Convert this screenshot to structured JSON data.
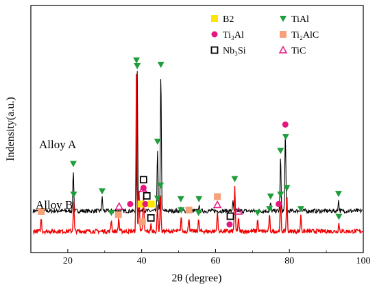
{
  "chart_data": {
    "type": "line",
    "title": "",
    "xlabel": "2θ (degree)",
    "ylabel": "Indensity(a.u.)",
    "xlim": [
      10,
      100
    ],
    "xticks": [
      20,
      40,
      60,
      80,
      100
    ],
    "grid": false,
    "legend_position": "top-center",
    "legend": [
      {
        "key": "B2",
        "label": "B2",
        "marker": "square",
        "color": "#ffe600"
      },
      {
        "key": "TiAl",
        "label": "TiAl",
        "marker": "triangle-down",
        "color": "#1e9e3a"
      },
      {
        "key": "Ti3Al",
        "label": "Ti₃Al",
        "marker": "circle",
        "color": "#e4177f"
      },
      {
        "key": "Ti2AlC",
        "label": "Ti₂AlC",
        "marker": "square",
        "color": "#f5a27a"
      },
      {
        "key": "Nb3Si",
        "label": "Nb₃Si",
        "marker": "open-square",
        "color": "#000000"
      },
      {
        "key": "TiC",
        "label": "TiC",
        "marker": "open-triangle",
        "color": "#e4177f"
      }
    ],
    "series": [
      {
        "name": "Alloy A",
        "color": "#000000",
        "baseline": 0.78,
        "peaks": [
          {
            "x": 21.5,
            "h": 1.55
          },
          {
            "x": 29.3,
            "h": 0.5
          },
          {
            "x": 38.8,
            "h": 5.3
          },
          {
            "x": 40.5,
            "h": 0.25
          },
          {
            "x": 44.3,
            "h": 2.4
          },
          {
            "x": 45.2,
            "h": 5.35
          },
          {
            "x": 50.6,
            "h": 0.2
          },
          {
            "x": 55.5,
            "h": 0.2
          },
          {
            "x": 64.7,
            "h": 0.35
          },
          {
            "x": 74.9,
            "h": 0.3
          },
          {
            "x": 77.6,
            "h": 2.05
          },
          {
            "x": 78.9,
            "h": 3.05
          },
          {
            "x": 83.0,
            "h": 0.2
          },
          {
            "x": 93.3,
            "h": 0.4
          }
        ]
      },
      {
        "name": "Alloy B",
        "color": "#ee0000",
        "baseline": 0.0,
        "peaks": [
          {
            "x": 12.8,
            "h": 0.5
          },
          {
            "x": 21.6,
            "h": 1.15
          },
          {
            "x": 31.8,
            "h": 0.45
          },
          {
            "x": 33.8,
            "h": 0.5
          },
          {
            "x": 38.6,
            "h": 6.3
          },
          {
            "x": 39.3,
            "h": 1.6
          },
          {
            "x": 40.5,
            "h": 1.4
          },
          {
            "x": 42.5,
            "h": 0.25
          },
          {
            "x": 44.3,
            "h": 1.0
          },
          {
            "x": 45.1,
            "h": 1.5
          },
          {
            "x": 50.7,
            "h": 0.55
          },
          {
            "x": 52.8,
            "h": 0.55
          },
          {
            "x": 55.4,
            "h": 0.45
          },
          {
            "x": 60.5,
            "h": 0.75
          },
          {
            "x": 65.2,
            "h": 1.75
          },
          {
            "x": 66.2,
            "h": 0.5
          },
          {
            "x": 71.4,
            "h": 0.45
          },
          {
            "x": 74.6,
            "h": 0.6
          },
          {
            "x": 77.6,
            "h": 1.15
          },
          {
            "x": 79.3,
            "h": 1.4
          },
          {
            "x": 83.1,
            "h": 0.6
          },
          {
            "x": 93.4,
            "h": 0.3
          }
        ]
      }
    ],
    "markers": [
      {
        "series": "Alloy A",
        "x": 21.5,
        "phase": "TiAl"
      },
      {
        "series": "Alloy A",
        "x": 29.3,
        "phase": "TiAl"
      },
      {
        "series": "Alloy A",
        "x": 36.9,
        "phase": "Ti3Al"
      },
      {
        "series": "Alloy A",
        "x": 38.8,
        "phase": "TiAl"
      },
      {
        "series": "Alloy A",
        "x": 39.8,
        "phase": "B2"
      },
      {
        "series": "Alloy A",
        "x": 41.0,
        "phase": "Ti3Al"
      },
      {
        "series": "Alloy A",
        "x": 41.4,
        "phase": "Nb3Si"
      },
      {
        "series": "Alloy A",
        "x": 42.6,
        "phase": "B2"
      },
      {
        "series": "Alloy A",
        "x": 44.3,
        "phase": "TiAl"
      },
      {
        "series": "Alloy A",
        "x": 45.2,
        "phase": "TiAl"
      },
      {
        "series": "Alloy A",
        "x": 50.6,
        "phase": "TiAl"
      },
      {
        "series": "Alloy A",
        "x": 55.5,
        "phase": "TiAl"
      },
      {
        "series": "Alloy A",
        "x": 74.9,
        "phase": "TiAl"
      },
      {
        "series": "Alloy A",
        "x": 77.1,
        "phase": "Ti3Al"
      },
      {
        "series": "Alloy A",
        "x": 77.6,
        "phase": "TiAl"
      },
      {
        "series": "Alloy A",
        "x": 78.9,
        "phase": "Ti3Al"
      },
      {
        "series": "Alloy A",
        "x": 79.0,
        "phase": "TiAl"
      },
      {
        "series": "Alloy A",
        "x": 93.3,
        "phase": "TiAl"
      },
      {
        "series": "Alloy B",
        "x": 12.8,
        "phase": "Ti2AlC"
      },
      {
        "series": "Alloy B",
        "x": 21.6,
        "phase": "TiAl"
      },
      {
        "series": "Alloy B",
        "x": 31.8,
        "phase": "TiAl"
      },
      {
        "series": "Alloy B",
        "x": 33.7,
        "phase": "Ti2AlC"
      },
      {
        "series": "Alloy B",
        "x": 33.9,
        "phase": "TiC"
      },
      {
        "series": "Alloy B",
        "x": 38.6,
        "phase": "TiAl"
      },
      {
        "series": "Alloy B",
        "x": 40.5,
        "phase": "Ti3Al"
      },
      {
        "series": "Alloy B",
        "x": 40.2,
        "phase": "Ti2AlC"
      },
      {
        "series": "Alloy B",
        "x": 40.4,
        "phase": "TiC"
      },
      {
        "series": "Alloy B",
        "x": 40.5,
        "phase": "Nb3Si"
      },
      {
        "series": "Alloy B",
        "x": 42.5,
        "phase": "Nb3Si"
      },
      {
        "series": "Alloy B",
        "x": 44.3,
        "phase": "TiAl"
      },
      {
        "series": "Alloy B",
        "x": 45.1,
        "phase": "TiAl"
      },
      {
        "series": "Alloy B",
        "x": 50.7,
        "phase": "TiAl"
      },
      {
        "series": "Alloy B",
        "x": 52.8,
        "phase": "Ti2AlC"
      },
      {
        "series": "Alloy B",
        "x": 55.4,
        "phase": "TiAl"
      },
      {
        "series": "Alloy B",
        "x": 60.5,
        "phase": "TiC"
      },
      {
        "series": "Alloy B",
        "x": 60.5,
        "phase": "Ti2AlC"
      },
      {
        "series": "Alloy B",
        "x": 63.8,
        "phase": "Ti3Al"
      },
      {
        "series": "Alloy B",
        "x": 64.0,
        "phase": "Nb3Si"
      },
      {
        "series": "Alloy B",
        "x": 65.2,
        "phase": "TiAl"
      },
      {
        "series": "Alloy B",
        "x": 66.2,
        "phase": "TiC"
      },
      {
        "series": "Alloy B",
        "x": 71.4,
        "phase": "TiAl"
      },
      {
        "series": "Alloy B",
        "x": 74.6,
        "phase": "TiAl"
      },
      {
        "series": "Alloy B",
        "x": 77.6,
        "phase": "TiAl"
      },
      {
        "series": "Alloy B",
        "x": 79.3,
        "phase": "TiAl"
      },
      {
        "series": "Alloy B",
        "x": 83.1,
        "phase": "TiAl"
      },
      {
        "series": "Alloy B",
        "x": 93.4,
        "phase": "TiAl"
      }
    ]
  }
}
